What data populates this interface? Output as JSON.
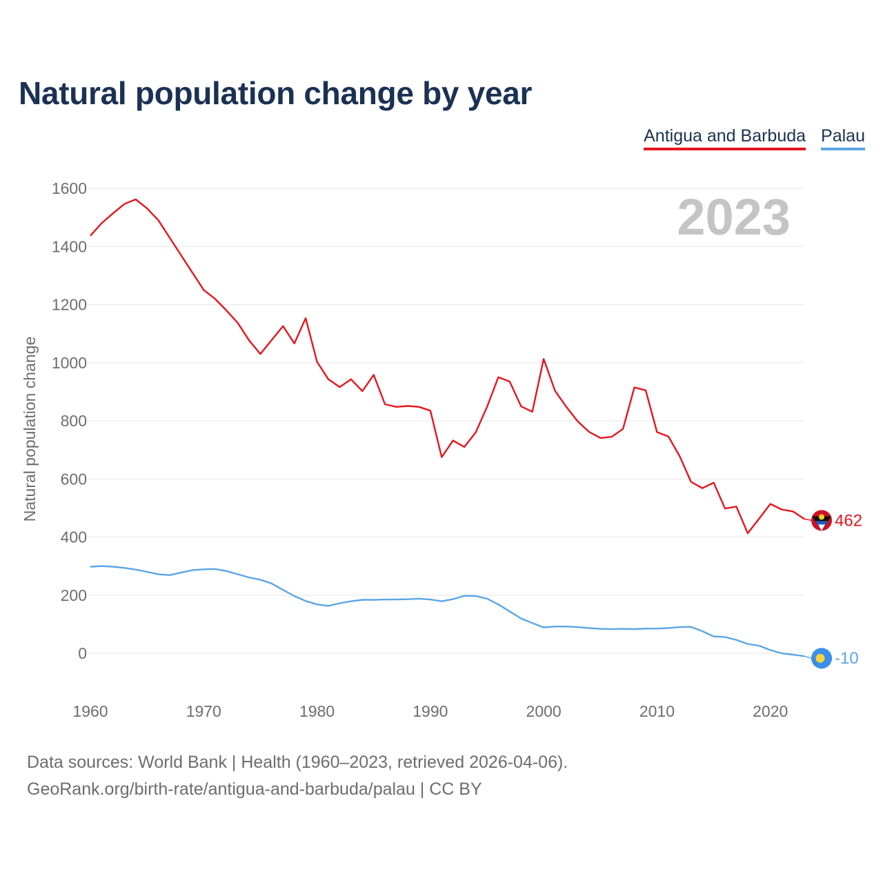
{
  "title": "Natural population change by year",
  "legend": {
    "series_1": "Antigua and Barbuda",
    "series_2": "Palau"
  },
  "year_watermark": "2023",
  "footer": {
    "line1": "Data sources: World Bank | Health (1960–2023, retrieved 2026-04-06).",
    "line2": "GeoRank.org/birth-rate/antigua-and-barbuda/palau | CC BY"
  },
  "colors": {
    "antigua": "#e8141c",
    "palau": "#5aa5e6",
    "title": "#1b3154"
  },
  "chart_data": {
    "type": "line",
    "title": "Natural population change by year",
    "xlabel": "",
    "ylabel": "Natural population change",
    "xlim": [
      1960,
      2023
    ],
    "ylim": [
      -150,
      1650
    ],
    "xticks": [
      1960,
      1970,
      1980,
      1990,
      2000,
      2010,
      2020
    ],
    "yticks": [
      0,
      200,
      400,
      600,
      800,
      1000,
      1200,
      1400,
      1600
    ],
    "grid": true,
    "legend": "top-right",
    "x": [
      1960,
      1961,
      1962,
      1963,
      1964,
      1965,
      1966,
      1967,
      1968,
      1969,
      1970,
      1971,
      1972,
      1973,
      1974,
      1975,
      1976,
      1977,
      1978,
      1979,
      1980,
      1981,
      1982,
      1983,
      1984,
      1985,
      1986,
      1987,
      1988,
      1989,
      1990,
      1991,
      1992,
      1993,
      1994,
      1995,
      1996,
      1997,
      1998,
      1999,
      2000,
      2001,
      2002,
      2003,
      2004,
      2005,
      2006,
      2007,
      2008,
      2009,
      2010,
      2011,
      2012,
      2013,
      2014,
      2015,
      2016,
      2017,
      2018,
      2019,
      2020,
      2021,
      2022,
      2023
    ],
    "series": [
      {
        "name": "Antigua and Barbuda",
        "color": "#e8141c",
        "end_label": "462",
        "values": [
          1437,
          1480,
          1514,
          1546,
          1562,
          1531,
          1490,
          1430,
          1370,
          1310,
          1250,
          1220,
          1180,
          1137,
          1077,
          1030,
          1078,
          1126,
          1066,
          1153,
          1003,
          943,
          916,
          943,
          902,
          958,
          857,
          848,
          851,
          848,
          835,
          675,
          732,
          710,
          760,
          848,
          950,
          935,
          850,
          831,
          1013,
          903,
          848,
          798,
          762,
          741,
          745,
          772,
          915,
          905,
          761,
          746,
          678,
          590,
          568,
          587,
          498,
          505,
          413,
          463,
          514,
          495,
          488,
          462
        ]
      },
      {
        "name": "Palau",
        "color": "#5aa5e6",
        "end_label": "-10",
        "values": [
          298,
          300,
          298,
          294,
          288,
          280,
          272,
          269,
          278,
          286,
          289,
          290,
          283,
          272,
          261,
          253,
          240,
          218,
          197,
          180,
          168,
          163,
          172,
          179,
          184,
          184,
          185,
          185,
          186,
          188,
          185,
          179,
          186,
          198,
          197,
          188,
          168,
          144,
          120,
          104,
          89,
          92,
          92,
          90,
          87,
          84,
          83,
          84,
          83,
          85,
          85,
          87,
          90,
          91,
          76,
          58,
          56,
          46,
          32,
          26,
          11,
          0,
          -5,
          -10
        ]
      }
    ]
  }
}
